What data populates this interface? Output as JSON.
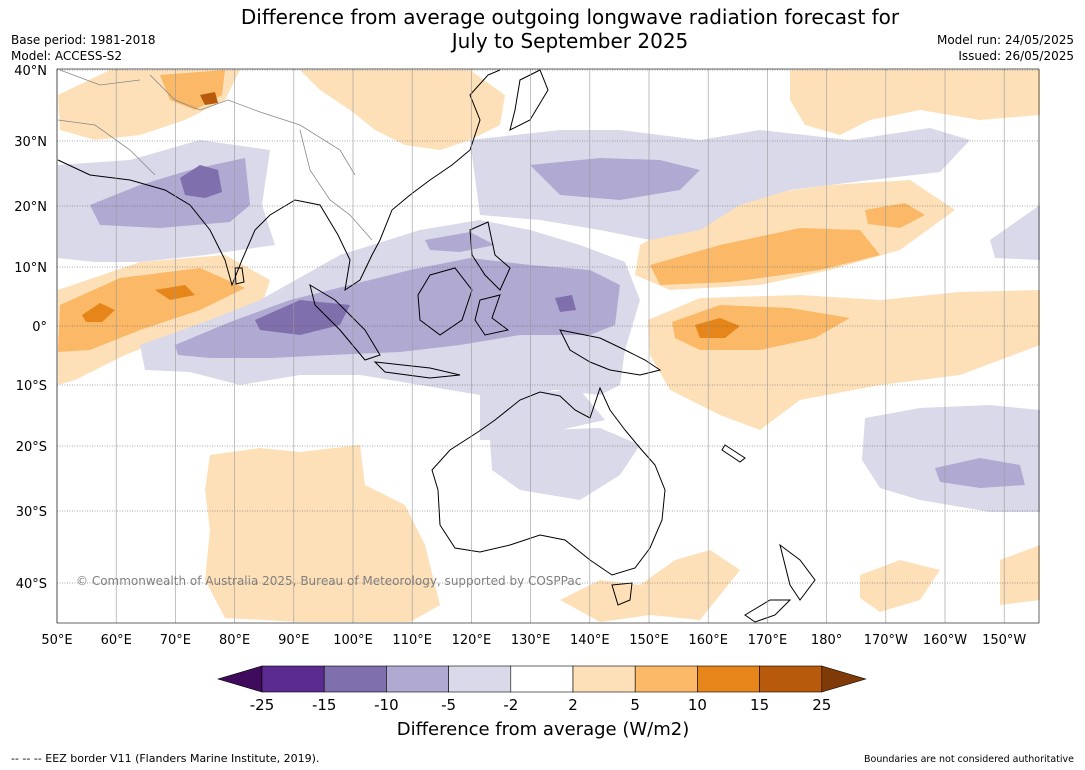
{
  "header": {
    "title_line1": "Difference from average outgoing longwave radiation forecast for",
    "title_line2": "July to September 2025",
    "base_period": "Base period: 1981-2018",
    "model": "Model: ACCESS-S2",
    "model_run": "Model run: 24/05/2025",
    "issued": "Issued: 26/05/2025"
  },
  "map": {
    "copyright": "© Commonwealth of Australia 2025, Bureau of Meteorology, supported by COSPPac",
    "lat_labels": [
      "40°N",
      "30°N",
      "20°N",
      "10°N",
      "0°",
      "10°S",
      "20°S",
      "30°S",
      "40°S"
    ],
    "lon_labels": [
      "50°E",
      "60°E",
      "70°E",
      "80°E",
      "90°E",
      "100°E",
      "110°E",
      "120°E",
      "130°E",
      "140°E",
      "150°E",
      "160°E",
      "170°E",
      "180°",
      "170°W",
      "160°W",
      "150°W"
    ]
  },
  "legend": {
    "title": "Difference from average (W/m2)",
    "ticks": [
      "-25",
      "-15",
      "-10",
      "-5",
      "-2",
      "2",
      "5",
      "10",
      "15",
      "25"
    ],
    "colors": [
      "#3f0b5c",
      "#5b2b8f",
      "#7f6fad",
      "#b0a9d2",
      "#d9d9ea",
      "#ffffff",
      "#fde0b8",
      "#fbb866",
      "#e6861a",
      "#b85a0c",
      "#7f3a08"
    ]
  },
  "footer": {
    "eez_note": "--  --  -- EEZ border V11 (Flanders Marine Institute, 2019).",
    "boundary_note": "Boundaries are not considered authoritative"
  }
}
